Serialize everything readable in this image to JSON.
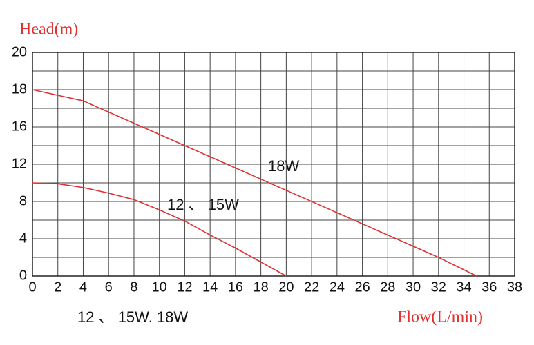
{
  "chart_data": {
    "type": "line",
    "y_label": "Head(m)",
    "x_label": "Flow(L/min)",
    "note": "12 、 15W. 18W",
    "xlim": [
      0,
      38
    ],
    "xticks": [
      0,
      2,
      4,
      6,
      8,
      10,
      12,
      14,
      16,
      18,
      20,
      22,
      24,
      26,
      28,
      30,
      32,
      34,
      36,
      38
    ],
    "ylim": [
      0,
      20
    ],
    "yticks": [
      0,
      4,
      8,
      12,
      16,
      18,
      20
    ],
    "grid": true,
    "series": [
      {
        "name": "18W",
        "color": "#e03030",
        "x": [
          0,
          2,
          4,
          8,
          12,
          16,
          20,
          24,
          28,
          32,
          35
        ],
        "values": [
          18,
          17.7,
          17.4,
          16.2,
          14,
          11.6,
          9.2,
          6.8,
          4.4,
          2,
          0
        ]
      },
      {
        "name": "12 、 15W",
        "color": "#e03030",
        "x": [
          0,
          2,
          4,
          6,
          8,
          10,
          12,
          14,
          16,
          18,
          20
        ],
        "values": [
          10,
          9.9,
          9.5,
          8.9,
          8.2,
          7.1,
          5.9,
          4.4,
          3,
          1.5,
          0
        ]
      }
    ]
  }
}
